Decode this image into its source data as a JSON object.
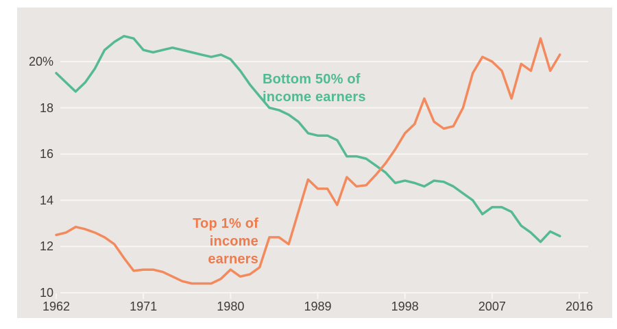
{
  "y_axis": {
    "ticks": [
      {
        "label": "20%",
        "value": 20
      },
      {
        "label": "18",
        "value": 18
      },
      {
        "label": "16",
        "value": 16
      },
      {
        "label": "14",
        "value": 14
      },
      {
        "label": "12",
        "value": 12
      },
      {
        "label": "10",
        "value": 10
      }
    ]
  },
  "x_axis": {
    "ticks": [
      {
        "label": "1962",
        "value": 1962
      },
      {
        "label": "1971",
        "value": 1971
      },
      {
        "label": "1980",
        "value": 1980
      },
      {
        "label": "1989",
        "value": 1989
      },
      {
        "label": "1998",
        "value": 1998
      },
      {
        "label": "2007",
        "value": 2007
      },
      {
        "label": "2016",
        "value": 2016
      }
    ]
  },
  "annotations": {
    "bottom50": {
      "line1": "Bottom 50% of",
      "line2": "income earners",
      "color": "#4fbb93"
    },
    "top1": {
      "line1": "Top 1% of",
      "line2": "income earners",
      "color": "#ef7a4c"
    }
  },
  "colors": {
    "panel_background": "#eae6e3",
    "gridline": "#f8f6f3",
    "tick_text": "#3e3a39",
    "bottom50_line": "#55b993",
    "top1_line": "#f38a5d"
  },
  "chart_data": {
    "type": "line",
    "title": "",
    "xlabel": "",
    "ylabel": "",
    "xlim": [
      1958,
      2019
    ],
    "ylim": [
      10,
      21.5
    ],
    "grid": true,
    "legend_position": "inline-annotations",
    "x": [
      1962,
      1963,
      1964,
      1965,
      1966,
      1967,
      1968,
      1969,
      1970,
      1971,
      1972,
      1973,
      1974,
      1975,
      1976,
      1977,
      1978,
      1979,
      1980,
      1981,
      1982,
      1983,
      1984,
      1985,
      1986,
      1987,
      1988,
      1989,
      1990,
      1991,
      1992,
      1993,
      1994,
      1995,
      1996,
      1997,
      1998,
      1999,
      2000,
      2001,
      2002,
      2003,
      2004,
      2005,
      2006,
      2007,
      2008,
      2009,
      2010,
      2011,
      2012,
      2013,
      2014
    ],
    "series": [
      {
        "name": "Bottom 50% of income earners",
        "color": "#55b993",
        "values": [
          19.5,
          19.1,
          18.7,
          19.1,
          19.7,
          20.5,
          20.85,
          21.1,
          21.0,
          20.5,
          20.4,
          20.5,
          20.6,
          20.5,
          20.4,
          20.3,
          20.2,
          20.3,
          20.1,
          19.6,
          19.0,
          18.5,
          18.0,
          17.9,
          17.7,
          17.4,
          16.9,
          16.8,
          16.8,
          16.6,
          15.9,
          15.9,
          15.8,
          15.5,
          15.2,
          14.75,
          14.85,
          14.75,
          14.6,
          14.85,
          14.8,
          14.6,
          14.3,
          14.0,
          13.4,
          13.7,
          13.7,
          13.5,
          12.9,
          12.6,
          12.2,
          12.65,
          12.45
        ]
      },
      {
        "name": "Top 1% of income earners",
        "color": "#f38a5d",
        "values": [
          12.5,
          12.6,
          12.85,
          12.75,
          12.6,
          12.4,
          12.1,
          11.5,
          10.95,
          11.0,
          11.0,
          10.9,
          10.7,
          10.5,
          10.4,
          10.4,
          10.4,
          10.6,
          11.0,
          10.7,
          10.8,
          11.1,
          12.4,
          12.4,
          12.1,
          13.5,
          14.9,
          14.5,
          14.5,
          13.8,
          15.0,
          14.6,
          14.65,
          15.1,
          15.6,
          16.2,
          16.9,
          17.3,
          18.4,
          17.4,
          17.1,
          17.2,
          18.0,
          19.5,
          20.2,
          20.0,
          19.6,
          18.4,
          19.9,
          19.6,
          21.0,
          19.6,
          20.3
        ]
      }
    ]
  }
}
